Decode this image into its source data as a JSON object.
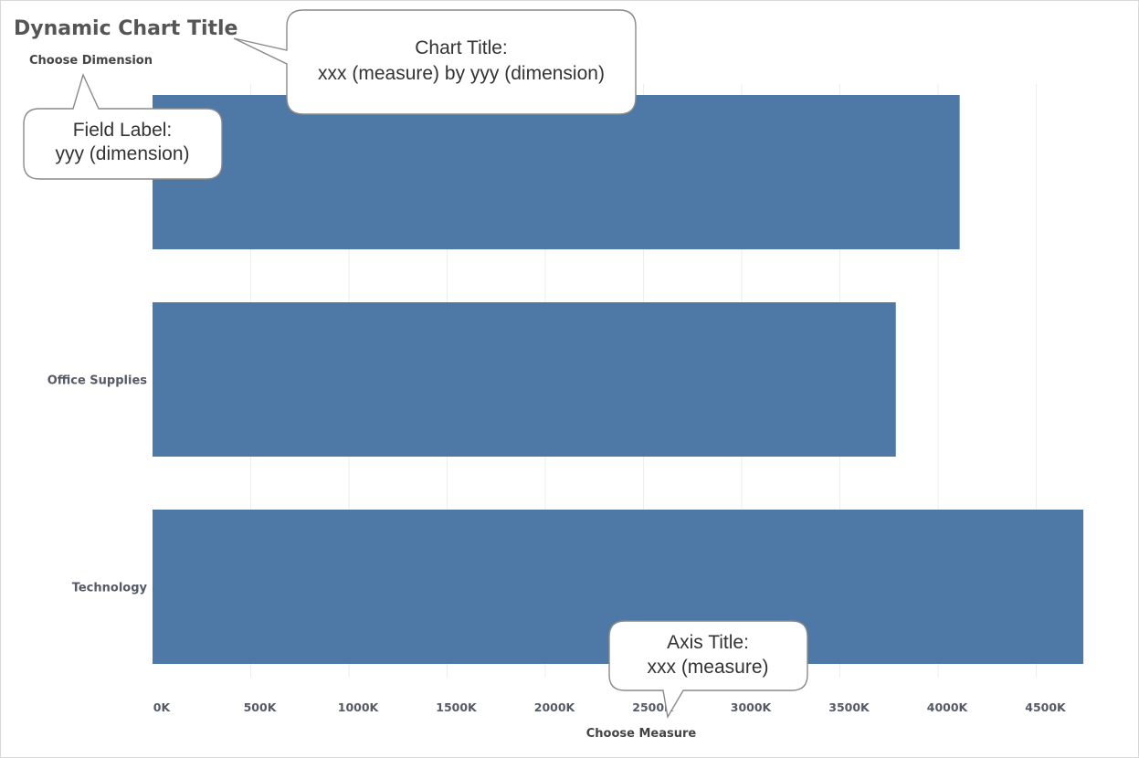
{
  "chart_data": {
    "type": "bar",
    "orientation": "horizontal",
    "title": "Dynamic Chart Title",
    "ylabel": "Choose Dimension",
    "xlabel": "Choose Measure",
    "categories": [
      "",
      "Office Supplies",
      "Technology"
    ],
    "values": [
      4110,
      3785,
      4740
    ],
    "unit": "K",
    "xlim": [
      0,
      4800
    ],
    "xticks": [
      0,
      500,
      1000,
      1500,
      2000,
      2500,
      3000,
      3500,
      4000,
      4500
    ],
    "tick_labels": [
      "0K",
      "500K",
      "1000K",
      "1500K",
      "2000K",
      "2500K",
      "3000K",
      "3500K",
      "4000K",
      "4500K"
    ],
    "bar_color": "#4e79a7",
    "grid": "vertical",
    "annotations": [
      {
        "id": "chart-title",
        "lines": [
          "Chart Title:",
          "xxx (measure) by yyy (dimension)"
        ]
      },
      {
        "id": "field-label",
        "lines": [
          "Field Label:",
          "yyy (dimension)"
        ]
      },
      {
        "id": "axis-title",
        "lines": [
          "Axis Title:",
          "xxx (measure)"
        ]
      }
    ]
  }
}
